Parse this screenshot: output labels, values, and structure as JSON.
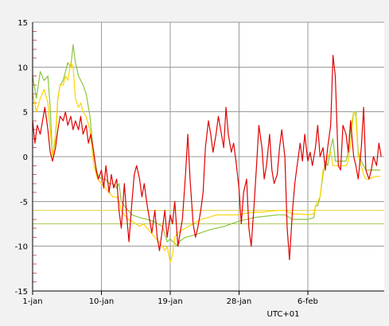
{
  "chart_data": {
    "type": "line",
    "title": "",
    "xlabel": "",
    "ylabel": "",
    "timezone_label": "UTC+01",
    "ylim": [
      -15,
      15
    ],
    "xlim": [
      0,
      46
    ],
    "x_unit": "days from 1-jan",
    "x_ticks": [
      {
        "label": "1-jan",
        "day": 0
      },
      {
        "label": "10-jan",
        "day": 9
      },
      {
        "label": "19-jan",
        "day": 18
      },
      {
        "label": "28-jan",
        "day": 27
      },
      {
        "label": "6-feb",
        "day": 36
      }
    ],
    "y_ticks": [
      {
        "label": "15",
        "value": 15
      },
      {
        "label": "10",
        "value": 10
      },
      {
        "label": "5",
        "value": 5
      },
      {
        "label": "0",
        "value": 0
      },
      {
        "label": "-5",
        "value": -5
      },
      {
        "label": "-10",
        "value": -10
      },
      {
        "label": "-15",
        "value": -15
      }
    ],
    "grid": true,
    "reference_lines": [
      {
        "value": -6.0,
        "color": "#e4d24a"
      },
      {
        "value": -7.5,
        "color": "#a9c95a"
      }
    ],
    "series": [
      {
        "color": "#e00000",
        "points": [
          [
            0,
            4
          ],
          [
            0.3,
            1.5
          ],
          [
            0.6,
            3.5
          ],
          [
            1,
            2.5
          ],
          [
            1.3,
            4
          ],
          [
            1.6,
            5.5
          ],
          [
            2,
            3
          ],
          [
            2.3,
            0.5
          ],
          [
            2.6,
            -0.5
          ],
          [
            3,
            1
          ],
          [
            3.3,
            3
          ],
          [
            3.6,
            4.5
          ],
          [
            4,
            4
          ],
          [
            4.3,
            5
          ],
          [
            4.6,
            3.5
          ],
          [
            5,
            4.5
          ],
          [
            5.3,
            3
          ],
          [
            5.6,
            4
          ],
          [
            6,
            3
          ],
          [
            6.3,
            4.5
          ],
          [
            6.6,
            2.5
          ],
          [
            7,
            3.5
          ],
          [
            7.3,
            1.5
          ],
          [
            7.6,
            2.5
          ],
          [
            8,
            0.5
          ],
          [
            8.3,
            -1.5
          ],
          [
            8.6,
            -2.5
          ],
          [
            9,
            -1.5
          ],
          [
            9.3,
            -3.5
          ],
          [
            9.6,
            -1
          ],
          [
            10,
            -4
          ],
          [
            10.3,
            -2
          ],
          [
            10.6,
            -3.5
          ],
          [
            11,
            -2.5
          ],
          [
            11.3,
            -6
          ],
          [
            11.6,
            -8
          ],
          [
            12,
            -3
          ],
          [
            12.3,
            -6.5
          ],
          [
            12.6,
            -9.5
          ],
          [
            13,
            -5
          ],
          [
            13.3,
            -2
          ],
          [
            13.6,
            -1
          ],
          [
            14,
            -2.5
          ],
          [
            14.3,
            -4.5
          ],
          [
            14.6,
            -3
          ],
          [
            15,
            -5.5
          ],
          [
            15.3,
            -7
          ],
          [
            15.6,
            -8.5
          ],
          [
            16,
            -6
          ],
          [
            16.3,
            -9
          ],
          [
            16.6,
            -10.5
          ],
          [
            17,
            -8
          ],
          [
            17.3,
            -6
          ],
          [
            17.6,
            -9
          ],
          [
            18,
            -6.5
          ],
          [
            18.3,
            -7.5
          ],
          [
            18.6,
            -5
          ],
          [
            19,
            -10
          ],
          [
            19.3,
            -8.5
          ],
          [
            19.6,
            -7
          ],
          [
            20,
            -2
          ],
          [
            20.3,
            2.5
          ],
          [
            20.6,
            -2.5
          ],
          [
            21,
            -7.5
          ],
          [
            21.3,
            -9
          ],
          [
            21.6,
            -8
          ],
          [
            22,
            -6
          ],
          [
            22.3,
            -4
          ],
          [
            22.6,
            1
          ],
          [
            23,
            4
          ],
          [
            23.3,
            2.5
          ],
          [
            23.6,
            0.5
          ],
          [
            24,
            2.5
          ],
          [
            24.3,
            4.5
          ],
          [
            24.6,
            3
          ],
          [
            25,
            1
          ],
          [
            25.3,
            5.5
          ],
          [
            25.6,
            2.5
          ],
          [
            26,
            0.5
          ],
          [
            26.3,
            1.5
          ],
          [
            26.6,
            -0.5
          ],
          [
            27,
            -3.5
          ],
          [
            27.3,
            -7.5
          ],
          [
            27.6,
            -4
          ],
          [
            28,
            -2.5
          ],
          [
            28.3,
            -8
          ],
          [
            28.6,
            -10
          ],
          [
            29,
            -5
          ],
          [
            29.3,
            -1
          ],
          [
            29.6,
            3.5
          ],
          [
            30,
            1
          ],
          [
            30.3,
            -2.5
          ],
          [
            30.6,
            -1
          ],
          [
            31,
            2.5
          ],
          [
            31.3,
            -1.5
          ],
          [
            31.6,
            -3
          ],
          [
            32,
            -2
          ],
          [
            32.3,
            1
          ],
          [
            32.6,
            3
          ],
          [
            33,
            0
          ],
          [
            33.3,
            -8
          ],
          [
            33.6,
            -11.5
          ],
          [
            34,
            -6
          ],
          [
            34.3,
            -3
          ],
          [
            34.6,
            -1
          ],
          [
            35,
            1.5
          ],
          [
            35.3,
            -0.5
          ],
          [
            35.6,
            2.5
          ],
          [
            36,
            -0.5
          ],
          [
            36.3,
            0.5
          ],
          [
            36.6,
            -1
          ],
          [
            37,
            1
          ],
          [
            37.3,
            3.5
          ],
          [
            37.6,
            0
          ],
          [
            38,
            1
          ],
          [
            38.3,
            -1.5
          ],
          [
            38.6,
            1
          ],
          [
            39,
            3.5
          ],
          [
            39.3,
            11.3
          ],
          [
            39.6,
            9
          ],
          [
            40,
            -1
          ],
          [
            40.3,
            -1.5
          ],
          [
            40.6,
            3.5
          ],
          [
            41,
            2.5
          ],
          [
            41.3,
            0.5
          ],
          [
            41.6,
            4
          ],
          [
            42,
            0
          ],
          [
            42.3,
            -1
          ],
          [
            42.6,
            -2.5
          ],
          [
            43,
            1
          ],
          [
            43.3,
            5.5
          ],
          [
            43.6,
            -1.5
          ],
          [
            44,
            -2.5
          ],
          [
            44.3,
            -1.5
          ],
          [
            44.6,
            0
          ],
          [
            45,
            -1
          ],
          [
            45.3,
            1.5
          ],
          [
            45.6,
            0
          ]
        ]
      },
      {
        "color": "#8cc63e",
        "points": [
          [
            0,
            9
          ],
          [
            0.5,
            6.5
          ],
          [
            1,
            9.5
          ],
          [
            1.5,
            8.5
          ],
          [
            2,
            9
          ],
          [
            2.3,
            5.5
          ],
          [
            2.6,
            0
          ],
          [
            3,
            2
          ],
          [
            3.3,
            6.5
          ],
          [
            3.6,
            8
          ],
          [
            4,
            8.5
          ],
          [
            4.3,
            9.5
          ],
          [
            4.6,
            10.5
          ],
          [
            5,
            10
          ],
          [
            5.3,
            12.5
          ],
          [
            5.6,
            10.5
          ],
          [
            6,
            9
          ],
          [
            6.3,
            8.5
          ],
          [
            6.6,
            8
          ],
          [
            7,
            7
          ],
          [
            7.5,
            4.5
          ],
          [
            8,
            0
          ],
          [
            8.5,
            -2
          ],
          [
            9,
            -2.5
          ],
          [
            9.5,
            -2.5
          ],
          [
            10,
            -3
          ],
          [
            10.5,
            -3
          ],
          [
            11,
            -3.5
          ],
          [
            11.3,
            -3
          ],
          [
            11.6,
            -5
          ],
          [
            12,
            -5.5
          ],
          [
            12.5,
            -6
          ],
          [
            13,
            -6.5
          ],
          [
            14,
            -6.8
          ],
          [
            15,
            -7
          ],
          [
            16,
            -7.3
          ],
          [
            17,
            -7.8
          ],
          [
            17.6,
            -9.5
          ],
          [
            18,
            -9.2
          ],
          [
            18.5,
            -9.6
          ],
          [
            19,
            -10
          ],
          [
            19.3,
            -9.4
          ],
          [
            20,
            -9
          ],
          [
            21,
            -8.8
          ],
          [
            22,
            -8.5
          ],
          [
            23,
            -8.2
          ],
          [
            24,
            -8
          ],
          [
            25,
            -7.8
          ],
          [
            26,
            -7.5
          ],
          [
            27,
            -7.2
          ],
          [
            28,
            -7
          ],
          [
            29,
            -6.8
          ],
          [
            30,
            -6.7
          ],
          [
            31,
            -6.6
          ],
          [
            32,
            -6.5
          ],
          [
            33,
            -6.5
          ],
          [
            34,
            -7
          ],
          [
            35,
            -7
          ],
          [
            36,
            -7
          ],
          [
            36.8,
            -6.8
          ],
          [
            37,
            -5.5
          ],
          [
            37.3,
            -5.5
          ],
          [
            37.6,
            -4.5
          ],
          [
            38,
            -2
          ],
          [
            38.3,
            -0.5
          ],
          [
            38.6,
            -1
          ],
          [
            39,
            1
          ],
          [
            39.3,
            2
          ],
          [
            39.6,
            -0.5
          ],
          [
            40,
            -0.5
          ],
          [
            40.5,
            -0.5
          ],
          [
            41,
            -0.5
          ],
          [
            41.3,
            0.5
          ],
          [
            41.6,
            3
          ],
          [
            42,
            5
          ],
          [
            42.3,
            5
          ],
          [
            42.6,
            0.5
          ],
          [
            43,
            -0.5
          ],
          [
            43.3,
            -1
          ],
          [
            43.6,
            -1.5
          ],
          [
            44,
            -1.5
          ],
          [
            44.5,
            -1.5
          ],
          [
            45,
            -1.5
          ],
          [
            45.5,
            -1.5
          ]
        ]
      },
      {
        "color": "#ffd400",
        "points": [
          [
            0,
            7
          ],
          [
            0.5,
            5
          ],
          [
            1,
            6.5
          ],
          [
            1.5,
            7.5
          ],
          [
            2,
            6
          ],
          [
            2.3,
            3
          ],
          [
            2.6,
            0
          ],
          [
            3,
            2.5
          ],
          [
            3.3,
            6.5
          ],
          [
            3.6,
            8
          ],
          [
            4,
            8
          ],
          [
            4.3,
            9
          ],
          [
            4.6,
            8.5
          ],
          [
            5,
            10.5
          ],
          [
            5.3,
            10
          ],
          [
            5.6,
            6.5
          ],
          [
            6,
            5.5
          ],
          [
            6.3,
            6
          ],
          [
            6.6,
            5
          ],
          [
            7,
            4.5
          ],
          [
            7.5,
            3
          ],
          [
            8,
            -1
          ],
          [
            8.5,
            -2.5
          ],
          [
            9,
            -3
          ],
          [
            9.5,
            -3.5
          ],
          [
            10,
            -4
          ],
          [
            10.5,
            -4.5
          ],
          [
            11,
            -4.5
          ],
          [
            11.3,
            -5
          ],
          [
            11.6,
            -6
          ],
          [
            12,
            -6.5
          ],
          [
            12.5,
            -7
          ],
          [
            13,
            -7.2
          ],
          [
            13.5,
            -7.5
          ],
          [
            14,
            -7.8
          ],
          [
            14.5,
            -7.5
          ],
          [
            15,
            -8
          ],
          [
            15.5,
            -8.5
          ],
          [
            16,
            -9
          ],
          [
            16.5,
            -9.5
          ],
          [
            17,
            -10
          ],
          [
            17.3,
            -10.5
          ],
          [
            17.6,
            -10
          ],
          [
            18,
            -11.8
          ],
          [
            18.3,
            -11
          ],
          [
            18.6,
            -9
          ],
          [
            19,
            -8.5
          ],
          [
            19.5,
            -8.2
          ],
          [
            20,
            -8
          ],
          [
            21,
            -7.5
          ],
          [
            22,
            -7
          ],
          [
            23,
            -6.8
          ],
          [
            24,
            -6.5
          ],
          [
            25,
            -6.5
          ],
          [
            26,
            -6.5
          ],
          [
            27,
            -6.5
          ],
          [
            28,
            -6.3
          ],
          [
            29,
            -6.2
          ],
          [
            30,
            -6.2
          ],
          [
            31,
            -6.1
          ],
          [
            32,
            -6
          ],
          [
            33,
            -6
          ],
          [
            34,
            -6.4
          ],
          [
            35,
            -6.4
          ],
          [
            36,
            -6.5
          ],
          [
            36.8,
            -6.4
          ],
          [
            37,
            -5.5
          ],
          [
            37.3,
            -5
          ],
          [
            37.6,
            -4.5
          ],
          [
            38,
            -1.5
          ],
          [
            38.3,
            -1
          ],
          [
            38.6,
            0
          ],
          [
            39,
            0.5
          ],
          [
            39.3,
            -1
          ],
          [
            39.6,
            -1
          ],
          [
            40,
            -1
          ],
          [
            40.5,
            -1
          ],
          [
            41,
            -1
          ],
          [
            41.3,
            -0.5
          ],
          [
            41.6,
            1.5
          ],
          [
            42,
            5
          ],
          [
            42.3,
            4.5
          ],
          [
            42.6,
            0
          ],
          [
            43,
            -1
          ],
          [
            43.3,
            -2
          ],
          [
            43.6,
            -2.5
          ],
          [
            44,
            -2.5
          ],
          [
            44.5,
            -2.3
          ],
          [
            45,
            -2.2
          ],
          [
            45.5,
            -2.2
          ]
        ]
      }
    ]
  }
}
